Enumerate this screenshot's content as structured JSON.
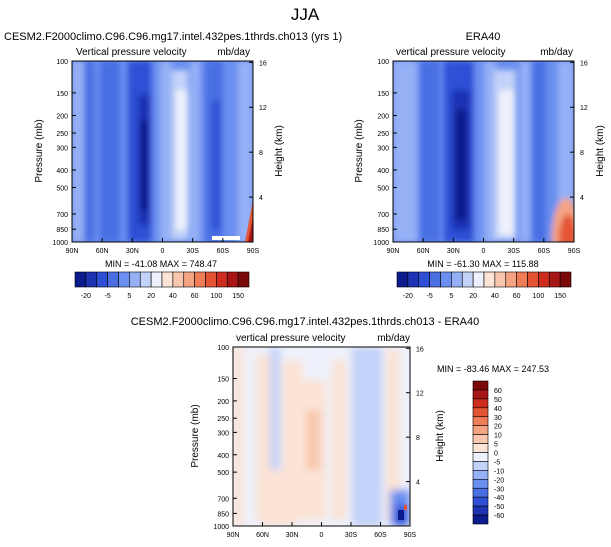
{
  "figure": {
    "title": "JJA"
  },
  "chart_data": [
    {
      "type": "heatmap",
      "title": "CESM2.F2000climo.C96.C96.mg17.intel.432pes.1thrds.ch013 (yrs 1)",
      "left_label": "Vertical pressure velocity",
      "right_label": "mb/day",
      "xlabel": "",
      "ylabel": "Pressure (mb)",
      "y2label": "Height (km)",
      "x_ticks": [
        "90N",
        "60N",
        "30N",
        "0",
        "30S",
        "60S",
        "90S"
      ],
      "y_ticks": [
        "100",
        "150",
        "200",
        "250",
        "300",
        "400",
        "500",
        "700",
        "850",
        "1000"
      ],
      "y2_ticks": [
        "16",
        "12",
        "8",
        "4"
      ],
      "stats": "MIN = -41.08  MAX = 748.47",
      "colorbar_labels": [
        "-20",
        "-5",
        "5",
        "20",
        "40",
        "60",
        "100",
        "150"
      ]
    },
    {
      "type": "heatmap",
      "title": "ERA40",
      "left_label": "vertical pressure velocity",
      "right_label": "mb/day",
      "xlabel": "",
      "ylabel": "Pressure (mb)",
      "y2label": "Height (km)",
      "x_ticks": [
        "90N",
        "60N",
        "30N",
        "0",
        "30S",
        "60S",
        "90S"
      ],
      "y_ticks": [
        "100",
        "150",
        "200",
        "250",
        "300",
        "400",
        "500",
        "700",
        "850",
        "1000"
      ],
      "y2_ticks": [
        "16",
        "12",
        "8",
        "4"
      ],
      "stats": "MIN = -61.30  MAX = 115.88",
      "colorbar_labels": [
        "-20",
        "-5",
        "5",
        "20",
        "40",
        "60",
        "100",
        "150"
      ]
    },
    {
      "type": "heatmap",
      "title": "CESM2.F2000climo.C96.C96.mg17.intel.432pes.1thrds.ch013 - ERA40",
      "left_label": "vertical pressure velocity",
      "right_label": "mb/day",
      "xlabel": "",
      "ylabel": "Pressure (mb)",
      "y2label": "Height (km)",
      "x_ticks": [
        "90N",
        "60N",
        "30N",
        "0",
        "30S",
        "60S",
        "90S"
      ],
      "y_ticks": [
        "100",
        "150",
        "200",
        "250",
        "300",
        "400",
        "500",
        "700",
        "850",
        "1000"
      ],
      "y2_ticks": [
        "16",
        "12",
        "8",
        "4"
      ],
      "stats": "MIN = -83.46  MAX = 247.53",
      "colorbar_labels": [
        "60",
        "50",
        "40",
        "30",
        "20",
        "10",
        "5",
        "0",
        "-5",
        "-10",
        "-20",
        "-30",
        "-40",
        "-50",
        "-60"
      ]
    }
  ],
  "colors": {
    "top_colorbar": [
      "#0b1a8c",
      "#1c33b4",
      "#2f4fd6",
      "#4a6fe3",
      "#6b8ff0",
      "#95b0f5",
      "#c2d2f8",
      "#eef1fb",
      "#fbe3d6",
      "#f8c7ad",
      "#f4a482",
      "#ee7d58",
      "#e35435",
      "#cc2d1e",
      "#a81515",
      "#7a0a0a"
    ],
    "bottom_colorbar": [
      "#7a0a0a",
      "#a81515",
      "#cc2d1e",
      "#e35435",
      "#ee7d58",
      "#f4a482",
      "#f8c7ad",
      "#fbe3d6",
      "#eef1fb",
      "#c2d2f8",
      "#95b0f5",
      "#6b8ff0",
      "#4a6fe3",
      "#2f4fd6",
      "#1c33b4",
      "#0b1a8c"
    ]
  }
}
